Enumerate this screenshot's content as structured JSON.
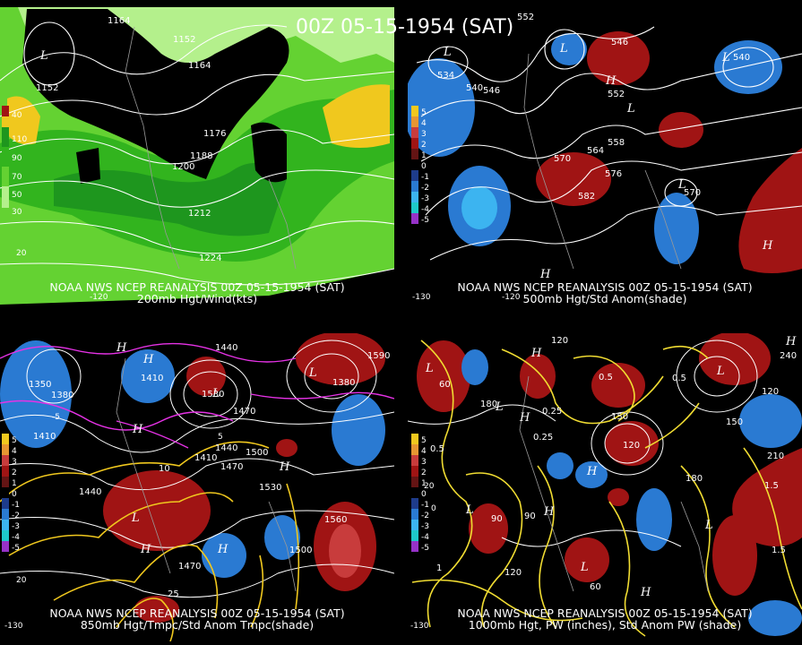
{
  "title": "00Z 05-15-1954 (SAT)",
  "panels": [
    {
      "id": "p200",
      "caption_line1": "NOAA NWS NCEP REANALYSIS 00Z 05-15-1954 (SAT)",
      "caption_line2": "200mb Hgt/Wind(kts)",
      "colorbar": [
        "40",
        "110",
        "90",
        "70",
        "50",
        "30"
      ],
      "contour_labels": [
        "1164",
        "1152",
        "1164",
        "1152",
        "1176",
        "1188",
        "1200",
        "1212",
        "1224",
        "20"
      ],
      "centers": [
        "L"
      ],
      "longitudes": [
        "-120"
      ]
    },
    {
      "id": "p500",
      "caption_line1": "NOAA NWS NCEP REANALYSIS 00Z 05-15-1954 (SAT)",
      "caption_line2": "500mb Hgt/Std Anom(shade)",
      "colorbar": [
        "5",
        "4",
        "3",
        "2",
        "1",
        "0",
        "-1",
        "-2",
        "-3",
        "-4",
        "-5"
      ],
      "contour_labels": [
        "552",
        "534",
        "540",
        "546",
        "552",
        "540",
        "558",
        "564",
        "570",
        "576",
        "582",
        "546",
        "570"
      ],
      "centers": [
        "L",
        "L",
        "L",
        "H",
        "L",
        "L",
        "H",
        "H"
      ],
      "longitudes": [
        "-130",
        "-120"
      ]
    },
    {
      "id": "p850",
      "caption_line1": "NOAA NWS NCEP REANALYSIS 00Z 05-15-1954 (SAT)",
      "caption_line2": "850mb Hgt/Tmpc/Std Anom Tmpc(shade)",
      "colorbar": [
        "5",
        "4",
        "3",
        "2",
        "1",
        "0",
        "-1",
        "-2",
        "-3",
        "-4",
        "-5"
      ],
      "contour_labels": [
        "1440",
        "1590",
        "1350",
        "1380",
        "1380",
        "1410",
        "1410",
        "1530",
        "1470",
        "1440",
        "1500",
        "1410",
        "1470",
        "1440",
        "1530",
        "1560",
        "1500",
        "1470",
        "10",
        "25",
        "20",
        "-5",
        "5"
      ],
      "centers": [
        "H",
        "H",
        "L",
        "H",
        "L",
        "H",
        "H",
        "H",
        "L"
      ],
      "longitudes": [
        "-130"
      ]
    },
    {
      "id": "p1000",
      "caption_line1": "NOAA NWS NCEP REANALYSIS 00Z 05-15-1954 (SAT)",
      "caption_line2": "1000mb Hgt, PW (inches), Std Anom PW (shade)",
      "colorbar": [
        "5",
        "4",
        "3",
        "2",
        "1",
        "0",
        "-1",
        "-2",
        "-3",
        "-4",
        "-5"
      ],
      "contour_labels": [
        "120",
        "240",
        "60",
        "0.5",
        "0.5",
        "180",
        "120",
        "150",
        "0.25",
        "0.25",
        "150",
        "120",
        "210",
        "180",
        "1.5",
        "90",
        "90",
        "120",
        "60",
        "0.5",
        "1",
        "1.5",
        "20",
        "0"
      ],
      "centers": [
        "H",
        "L",
        "H",
        "L",
        "H",
        "L",
        "L",
        "L",
        "H",
        "L",
        "H",
        "H"
      ],
      "longitudes": [
        "-130"
      ]
    }
  ],
  "colors": {
    "background": "#000000",
    "wind_light": "#b4f08c",
    "wind_green": "#64d232",
    "wind_mid": "#32b41e",
    "wind_dark": "#1e961e",
    "wind_yellow": "#f0c81e",
    "anom_pos": "#a01414",
    "anom_neg": "#2a7ad2",
    "anom_neg_strong": "#3cb4f0",
    "pw_contour": "#f0dc32",
    "temp_contour": "#e632e6"
  }
}
